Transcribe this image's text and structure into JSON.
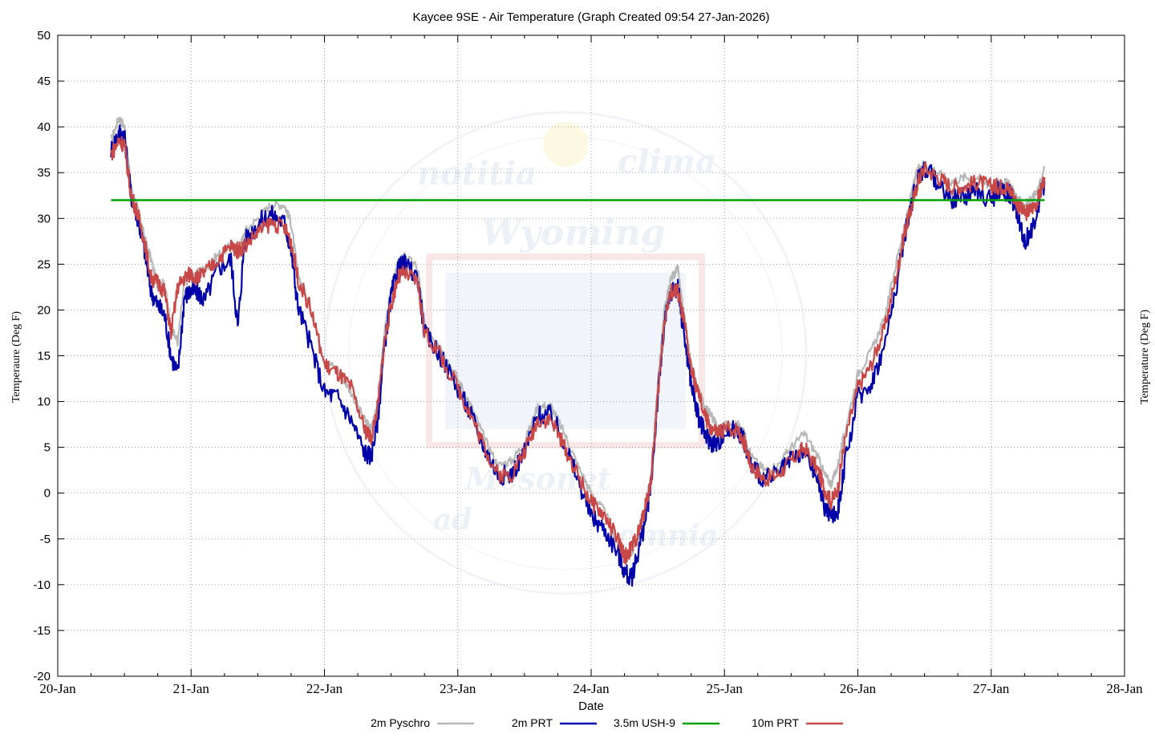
{
  "chart_data": {
    "type": "line",
    "title": "Kaycee 9SE - Air Temperature (Graph Created 09:54 27-Jan-2026)",
    "xlabel": "Date",
    "ylabel_left": "Temperaure (Deg F)",
    "ylabel_right": "Temperature (Deg F)",
    "ylim": [
      -20,
      50
    ],
    "y_ticks": [
      50,
      45,
      40,
      35,
      30,
      25,
      20,
      15,
      10,
      5,
      0,
      -5,
      -10,
      -15,
      -20
    ],
    "x_ticks": [
      "20-Jan",
      "21-Jan",
      "22-Jan",
      "23-Jan",
      "24-Jan",
      "25-Jan",
      "26-Jan",
      "27-Jan",
      "28-Jan"
    ],
    "xlim_days": [
      0,
      8
    ],
    "grid": true,
    "legend_position": "bottom",
    "watermark_text": [
      "notitia",
      "clima",
      "Wyoming",
      "Mesonet",
      "ad",
      "omnia"
    ],
    "series": [
      {
        "name": "2m Pyschro",
        "color": "#b8b8b8",
        "x": [
          0.4,
          0.46,
          0.5,
          0.55,
          0.6,
          0.65,
          0.7,
          0.75,
          0.8,
          0.85,
          0.9,
          0.95,
          1.0,
          1.05,
          1.1,
          1.2,
          1.3,
          1.35,
          1.4,
          1.5,
          1.6,
          1.7,
          1.75,
          1.8,
          1.9,
          2.0,
          2.1,
          2.2,
          2.3,
          2.35,
          2.4,
          2.45,
          2.5,
          2.55,
          2.6,
          2.7,
          2.75,
          2.85,
          3.0,
          3.1,
          3.2,
          3.3,
          3.4,
          3.5,
          3.6,
          3.7,
          3.8,
          3.9,
          4.0,
          4.1,
          4.2,
          4.25,
          4.3,
          4.35,
          4.4,
          4.45,
          4.5,
          4.55,
          4.6,
          4.65,
          4.7,
          4.75,
          4.8,
          4.85,
          4.9,
          4.95,
          5.0,
          5.1,
          5.15,
          5.2,
          5.3,
          5.4,
          5.5,
          5.6,
          5.7,
          5.75,
          5.8,
          5.85,
          5.9,
          6.0,
          6.1,
          6.2,
          6.3,
          6.35,
          6.4,
          6.45,
          6.5,
          6.6,
          6.7,
          6.8,
          6.9,
          7.0,
          7.05,
          7.1,
          7.15,
          7.2,
          7.25,
          7.3,
          7.35,
          7.4
        ],
        "values": [
          38.5,
          41.0,
          40.0,
          33.5,
          31.0,
          28.0,
          25.5,
          22.5,
          23.0,
          18.0,
          16.5,
          23.0,
          23.5,
          24.0,
          24.5,
          26.0,
          27.0,
          26.0,
          28.5,
          30.0,
          31.5,
          31.5,
          29.5,
          24.0,
          20.0,
          14.5,
          13.5,
          11.0,
          8.0,
          7.0,
          10.0,
          17.5,
          22.0,
          25.0,
          26.0,
          24.5,
          18.5,
          16.5,
          12.5,
          9.5,
          6.0,
          3.0,
          3.5,
          5.5,
          9.5,
          9.5,
          6.5,
          3.0,
          0.0,
          -2.0,
          -5.5,
          -7.0,
          -6.5,
          -5.0,
          -2.0,
          2.0,
          12.0,
          20.0,
          23.5,
          24.5,
          19.0,
          14.0,
          11.5,
          9.5,
          8.5,
          7.0,
          7.5,
          7.5,
          6.5,
          4.0,
          2.5,
          3.0,
          5.0,
          6.5,
          4.0,
          2.0,
          1.0,
          3.0,
          6.5,
          13.0,
          15.5,
          19.0,
          26.0,
          29.0,
          32.5,
          35.5,
          36.0,
          35.0,
          34.0,
          34.5,
          34.5,
          33.5,
          34.0,
          34.0,
          33.5,
          32.0,
          31.5,
          32.0,
          33.0,
          35.5
        ]
      },
      {
        "name": "2m PRT",
        "color": "#0000a8",
        "x": [
          0.4,
          0.46,
          0.5,
          0.55,
          0.6,
          0.65,
          0.7,
          0.75,
          0.8,
          0.85,
          0.9,
          0.95,
          1.0,
          1.05,
          1.1,
          1.2,
          1.3,
          1.35,
          1.4,
          1.5,
          1.6,
          1.7,
          1.75,
          1.8,
          1.9,
          2.0,
          2.1,
          2.2,
          2.3,
          2.35,
          2.4,
          2.45,
          2.5,
          2.55,
          2.6,
          2.7,
          2.75,
          2.85,
          3.0,
          3.1,
          3.2,
          3.3,
          3.4,
          3.5,
          3.6,
          3.7,
          3.8,
          3.9,
          4.0,
          4.1,
          4.2,
          4.25,
          4.3,
          4.35,
          4.4,
          4.45,
          4.5,
          4.55,
          4.6,
          4.65,
          4.7,
          4.75,
          4.8,
          4.85,
          4.9,
          4.95,
          5.0,
          5.1,
          5.15,
          5.2,
          5.3,
          5.4,
          5.5,
          5.6,
          5.7,
          5.75,
          5.8,
          5.85,
          5.9,
          6.0,
          6.1,
          6.2,
          6.3,
          6.35,
          6.4,
          6.45,
          6.5,
          6.6,
          6.7,
          6.8,
          6.9,
          7.0,
          7.05,
          7.1,
          7.15,
          7.2,
          7.25,
          7.3,
          7.35,
          7.4
        ],
        "values": [
          37.5,
          39.5,
          39.0,
          32.5,
          30.0,
          26.5,
          22.0,
          20.5,
          19.5,
          15.0,
          13.0,
          21.5,
          22.0,
          22.0,
          21.0,
          24.5,
          25.5,
          18.0,
          27.5,
          29.5,
          30.5,
          29.5,
          26.5,
          20.5,
          16.0,
          11.0,
          10.5,
          8.0,
          4.5,
          4.0,
          8.0,
          16.0,
          21.5,
          24.5,
          25.0,
          23.5,
          17.5,
          15.5,
          11.5,
          8.5,
          5.0,
          2.0,
          2.0,
          4.5,
          8.5,
          8.5,
          5.5,
          1.5,
          -2.5,
          -4.0,
          -6.5,
          -8.5,
          -9.5,
          -6.5,
          -3.5,
          1.0,
          10.5,
          18.5,
          22.0,
          22.5,
          17.0,
          12.0,
          8.5,
          6.5,
          5.5,
          5.5,
          6.5,
          7.0,
          5.5,
          3.0,
          1.5,
          2.0,
          3.5,
          4.5,
          1.5,
          -1.5,
          -2.5,
          -2.0,
          3.0,
          10.5,
          12.0,
          16.0,
          23.5,
          28.0,
          31.5,
          34.5,
          35.5,
          34.0,
          32.0,
          32.5,
          33.0,
          32.0,
          33.0,
          33.0,
          32.5,
          30.5,
          27.5,
          28.5,
          31.0,
          34.0
        ]
      },
      {
        "name": "3.5m USH-9",
        "color": "#00a000",
        "x": [
          0.4,
          7.4
        ],
        "values": [
          32.0,
          32.0
        ]
      },
      {
        "name": "10m PRT",
        "color": "#c84848",
        "x": [
          0.4,
          0.46,
          0.5,
          0.55,
          0.6,
          0.65,
          0.7,
          0.75,
          0.8,
          0.85,
          0.9,
          0.95,
          1.0,
          1.05,
          1.1,
          1.2,
          1.3,
          1.35,
          1.4,
          1.5,
          1.6,
          1.7,
          1.75,
          1.8,
          1.9,
          2.0,
          2.1,
          2.2,
          2.3,
          2.35,
          2.4,
          2.45,
          2.5,
          2.55,
          2.6,
          2.7,
          2.75,
          2.85,
          3.0,
          3.1,
          3.2,
          3.3,
          3.4,
          3.5,
          3.6,
          3.7,
          3.8,
          3.9,
          4.0,
          4.1,
          4.2,
          4.25,
          4.3,
          4.35,
          4.4,
          4.45,
          4.5,
          4.55,
          4.6,
          4.65,
          4.7,
          4.75,
          4.8,
          4.85,
          4.9,
          4.95,
          5.0,
          5.1,
          5.15,
          5.2,
          5.3,
          5.4,
          5.5,
          5.6,
          5.7,
          5.75,
          5.8,
          5.85,
          5.9,
          6.0,
          6.1,
          6.2,
          6.3,
          6.35,
          6.4,
          6.45,
          6.5,
          6.6,
          6.7,
          6.8,
          6.9,
          7.0,
          7.05,
          7.1,
          7.15,
          7.2,
          7.25,
          7.3,
          7.35,
          7.4
        ],
        "values": [
          37.0,
          38.5,
          38.0,
          32.5,
          30.5,
          27.5,
          23.5,
          23.0,
          22.0,
          17.5,
          22.5,
          23.5,
          24.0,
          23.5,
          24.0,
          25.5,
          27.0,
          26.5,
          27.0,
          28.5,
          29.5,
          29.0,
          27.5,
          23.5,
          20.0,
          14.0,
          13.0,
          11.5,
          7.0,
          6.0,
          9.5,
          16.5,
          20.5,
          23.5,
          24.0,
          23.0,
          17.5,
          15.5,
          11.5,
          8.5,
          5.0,
          2.0,
          2.0,
          4.5,
          8.0,
          8.0,
          5.0,
          2.0,
          -1.0,
          -2.5,
          -5.0,
          -7.0,
          -6.0,
          -4.5,
          -2.0,
          1.5,
          10.5,
          19.0,
          22.0,
          22.0,
          18.5,
          13.5,
          11.0,
          8.5,
          7.0,
          6.5,
          7.0,
          7.0,
          5.5,
          3.0,
          1.5,
          2.0,
          3.5,
          5.0,
          2.5,
          0.5,
          -1.0,
          0.5,
          5.5,
          11.5,
          14.0,
          18.0,
          24.5,
          28.5,
          31.0,
          34.0,
          35.5,
          34.5,
          33.5,
          33.5,
          34.0,
          33.5,
          33.5,
          33.5,
          33.0,
          31.5,
          30.5,
          31.0,
          32.0,
          34.5
        ]
      }
    ]
  }
}
